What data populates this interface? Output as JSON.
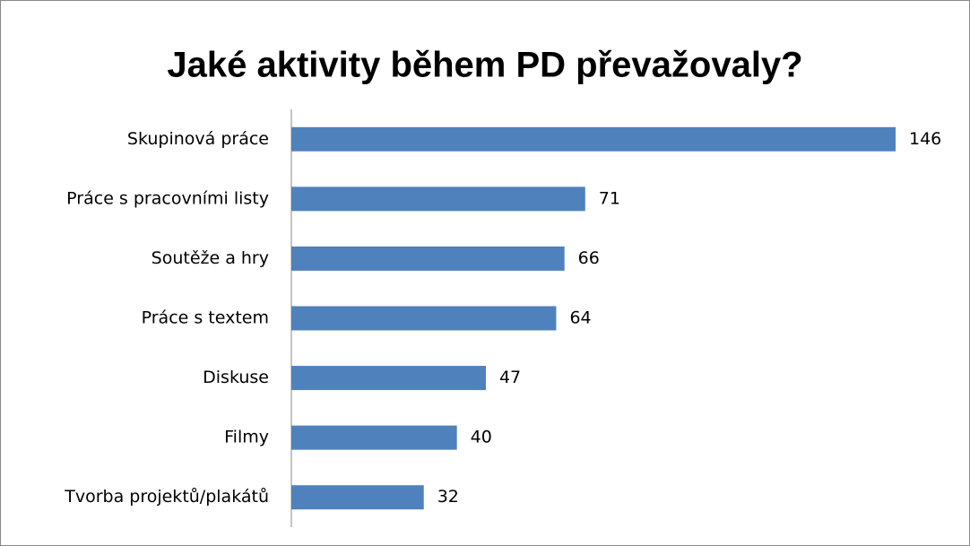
{
  "chart_data": {
    "type": "bar",
    "orientation": "horizontal",
    "title": "Jaké aktivity během PD převažovaly?",
    "categories": [
      "Skupinová práce",
      "Práce s pracovními listy",
      "Soutěže a hry",
      "Práce s textem",
      "Diskuse",
      "Filmy",
      "Tvorba projektů/plakátů"
    ],
    "values": [
      146,
      71,
      66,
      64,
      47,
      40,
      32
    ],
    "color": "#4f81bd"
  }
}
